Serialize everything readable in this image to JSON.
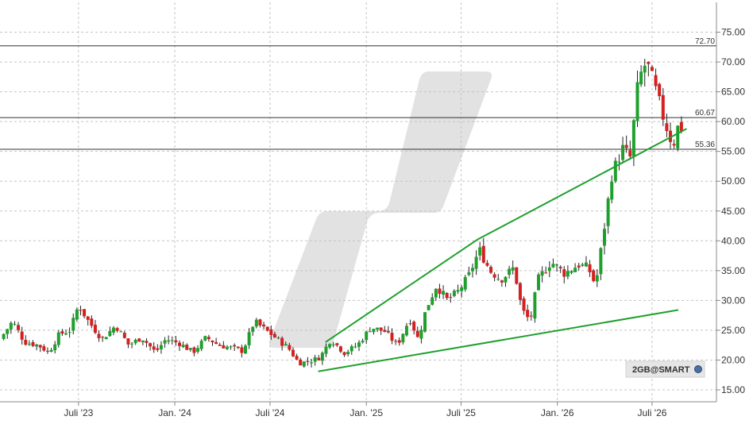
{
  "chart_data": {
    "type": "candlestick",
    "title": "",
    "xlabel": "",
    "ylabel": "",
    "ylim": [
      13,
      80
    ],
    "y_ticks": [
      15,
      20,
      25,
      30,
      35,
      40,
      45,
      50,
      55,
      60,
      65,
      70,
      75
    ],
    "y_tick_labels": [
      "15.00",
      "20.00",
      "25.00",
      "30.00",
      "35.00",
      "40.00",
      "45.00",
      "50.00",
      "55.00",
      "60.00",
      "65.00",
      "70.00",
      "75.00"
    ],
    "x_range": [
      "2023-02-01",
      "2026-11-01"
    ],
    "x_ticks": [
      {
        "date": "2023-07-01",
        "label": "Juli '23"
      },
      {
        "date": "2024-01-01",
        "label": "Jan. '24"
      },
      {
        "date": "2024-07-01",
        "label": "Juli '24"
      },
      {
        "date": "2025-01-01",
        "label": "Jan. '25"
      },
      {
        "date": "2025-07-01",
        "label": "Juli '25"
      },
      {
        "date": "2026-01-01",
        "label": "Jan. '26"
      },
      {
        "date": "2026-07-01",
        "label": "Juli '26"
      }
    ],
    "grid": true,
    "up_color": "#1fa02d",
    "down_color": "#d42020",
    "levels": [
      {
        "value": 72.7,
        "label": "72.70"
      },
      {
        "value": 60.67,
        "label": "60.67"
      },
      {
        "value": 55.36,
        "label": "55.36"
      }
    ],
    "trendlines": [
      {
        "color": "#1fa02d",
        "start": {
          "date": "2024-10-15",
          "value": 23.0
        },
        "end": {
          "date": "2025-08-01",
          "value": 40.2
        }
      },
      {
        "color": "#1fa02d",
        "start": {
          "date": "2025-08-01",
          "value": 40.2
        },
        "end": {
          "date": "2026-09-05",
          "value": 58.8
        }
      },
      {
        "color": "#1fa02d",
        "start": {
          "date": "2024-10-01",
          "value": 18.1
        },
        "end": {
          "date": "2026-08-20",
          "value": 28.4
        }
      }
    ],
    "anchors": [
      [
        "2023-02-01",
        23.5
      ],
      [
        "2023-02-25",
        26.5
      ],
      [
        "2023-03-20",
        23
      ],
      [
        "2023-04-15",
        22.5
      ],
      [
        "2023-05-05",
        21.3
      ],
      [
        "2023-05-25",
        24.3
      ],
      [
        "2023-06-15",
        25
      ],
      [
        "2023-07-01",
        29.2
      ],
      [
        "2023-07-20",
        26.5
      ],
      [
        "2023-08-15",
        23.5
      ],
      [
        "2023-09-10",
        25.8
      ],
      [
        "2023-10-05",
        22.5
      ],
      [
        "2023-10-30",
        23.8
      ],
      [
        "2023-11-25",
        21.3
      ],
      [
        "2023-12-15",
        23.5
      ],
      [
        "2024-01-10",
        22.8
      ],
      [
        "2024-02-05",
        21.3
      ],
      [
        "2024-03-01",
        23.8
      ],
      [
        "2024-03-25",
        22.5
      ],
      [
        "2024-04-20",
        22.0
      ],
      [
        "2024-05-10",
        21.5
      ],
      [
        "2024-06-01",
        26.5
      ],
      [
        "2024-06-20",
        25.2
      ],
      [
        "2024-07-15",
        23.5
      ],
      [
        "2024-08-05",
        22.0
      ],
      [
        "2024-08-25",
        19.5
      ],
      [
        "2024-09-15",
        19.8
      ],
      [
        "2024-10-05",
        20.5
      ],
      [
        "2024-10-25",
        23.5
      ],
      [
        "2024-11-20",
        21.2
      ],
      [
        "2024-12-15",
        22.5
      ],
      [
        "2025-01-10",
        25.5
      ],
      [
        "2025-02-05",
        24.8
      ],
      [
        "2025-03-01",
        22.5
      ],
      [
        "2025-03-25",
        27.0
      ],
      [
        "2025-04-10",
        23.5
      ],
      [
        "2025-04-25",
        28.5
      ],
      [
        "2025-05-15",
        32.5
      ],
      [
        "2025-06-05",
        30.0
      ],
      [
        "2025-06-25",
        31.5
      ],
      [
        "2025-07-15",
        34.0
      ],
      [
        "2025-08-05",
        38.5
      ],
      [
        "2025-08-25",
        35.0
      ],
      [
        "2025-09-15",
        33.5
      ],
      [
        "2025-10-10",
        35.5
      ],
      [
        "2025-10-25",
        28.5
      ],
      [
        "2025-11-10",
        26.5
      ],
      [
        "2025-11-25",
        33.5
      ],
      [
        "2025-12-20",
        36.5
      ],
      [
        "2026-01-15",
        34.5
      ],
      [
        "2026-02-10",
        36.0
      ],
      [
        "2026-03-01",
        35.5
      ],
      [
        "2026-03-15",
        32.5
      ],
      [
        "2026-03-28",
        40.0
      ],
      [
        "2026-04-15",
        51.0
      ],
      [
        "2026-05-05",
        55.5
      ],
      [
        "2026-05-20",
        54.0
      ],
      [
        "2026-06-05",
        67.0
      ],
      [
        "2026-06-20",
        70.0
      ],
      [
        "2026-07-05",
        66.0
      ],
      [
        "2026-07-25",
        60.0
      ],
      [
        "2026-08-10",
        56.0
      ],
      [
        "2026-08-22",
        60.0
      ],
      [
        "2026-09-01",
        57.5
      ]
    ],
    "shadow_color": "#e2e2e2"
  },
  "badge": {
    "label": "2GB@SMART"
  }
}
